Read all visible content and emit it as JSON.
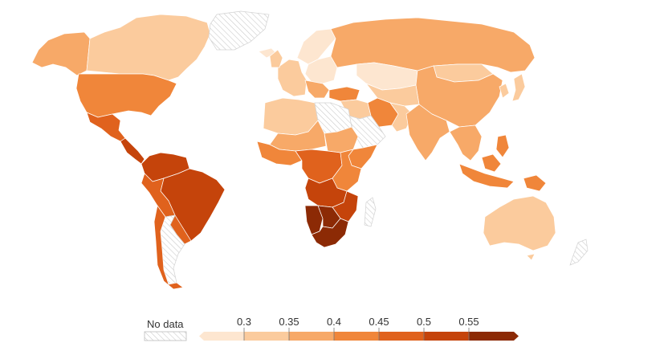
{
  "legend": {
    "no_data_label": "No data",
    "ticks": [
      "0.3",
      "0.35",
      "0.4",
      "0.45",
      "0.5",
      "0.55"
    ],
    "bins": [
      {
        "to": 0.3,
        "color": "#fde6d0"
      },
      {
        "to": 0.35,
        "color": "#fbcb9d"
      },
      {
        "to": 0.4,
        "color": "#f7a968"
      },
      {
        "to": 0.45,
        "color": "#f0863a"
      },
      {
        "to": 0.5,
        "color": "#e0621d"
      },
      {
        "to": 0.55,
        "color": "#c5440b"
      },
      {
        "to": 0.65,
        "color": "#8c2a05"
      }
    ]
  },
  "regions": {
    "alaska": 0.37,
    "canada": 0.33,
    "usa": 0.41,
    "mexico": 0.45,
    "central_america": 0.5,
    "colombia_venezuela": 0.53,
    "brazil": 0.54,
    "andes": 0.48,
    "paraguay": 0.45,
    "argentina": "no-data",
    "greenland": "no-data",
    "iceland": 0.28,
    "europe_west": 0.32,
    "scandinavia": 0.28,
    "europe_east": 0.29,
    "balkans": 0.35,
    "turkey": 0.41,
    "russia": 0.37,
    "kazakhstan": 0.28,
    "central_asia": 0.3,
    "mongolia": 0.33,
    "china": 0.38,
    "iran": 0.4,
    "middle_east": 0.34,
    "saudi": "no-data",
    "afghanistan": 0.32,
    "south_asia": 0.35,
    "southeast_asia": 0.39,
    "philippines": 0.44,
    "indonesia": 0.42,
    "papua": 0.42,
    "japan": 0.33,
    "korea": 0.32,
    "north_africa_west": 0.3,
    "libya_egypt": "no-data",
    "sahel": 0.38,
    "sudan": 0.35,
    "west_africa": 0.42,
    "central_africa": 0.45,
    "east_africa": 0.4,
    "horn_of_africa": 0.4,
    "angola_zambia": 0.51,
    "mozambique_zim": 0.53,
    "namibia": 0.58,
    "botswana": 0.55,
    "south_africa": 0.63,
    "madagascar": "no-data",
    "australia": 0.34,
    "new_zealand": "no-data"
  }
}
